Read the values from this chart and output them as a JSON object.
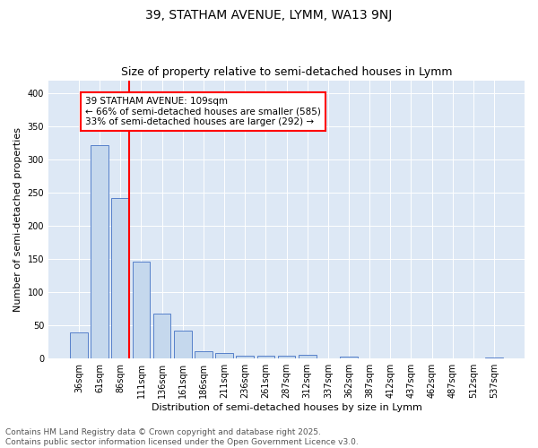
{
  "title1": "39, STATHAM AVENUE, LYMM, WA13 9NJ",
  "title2": "Size of property relative to semi-detached houses in Lymm",
  "xlabel": "Distribution of semi-detached houses by size in Lymm",
  "ylabel": "Number of semi-detached properties",
  "categories": [
    "36sqm",
    "61sqm",
    "86sqm",
    "111sqm",
    "136sqm",
    "161sqm",
    "186sqm",
    "211sqm",
    "236sqm",
    "261sqm",
    "287sqm",
    "312sqm",
    "337sqm",
    "362sqm",
    "387sqm",
    "412sqm",
    "437sqm",
    "462sqm",
    "487sqm",
    "512sqm",
    "537sqm"
  ],
  "values": [
    40,
    322,
    242,
    146,
    68,
    42,
    11,
    8,
    4,
    5,
    5,
    6,
    0,
    3,
    0,
    0,
    0,
    0,
    0,
    0,
    2
  ],
  "bar_color": "#c5d8ed",
  "bar_edge_color": "#4472c4",
  "vline_color": "red",
  "vline_x_index": 2,
  "annotation_text_line1": "39 STATHAM AVENUE: 109sqm",
  "annotation_text_line2": "← 66% of semi-detached houses are smaller (585)",
  "annotation_text_line3": "33% of semi-detached houses are larger (292) →",
  "ylim": [
    0,
    420
  ],
  "yticks": [
    0,
    50,
    100,
    150,
    200,
    250,
    300,
    350,
    400
  ],
  "bg_color": "#dde8f5",
  "footer_text": "Contains HM Land Registry data © Crown copyright and database right 2025.\nContains public sector information licensed under the Open Government Licence v3.0.",
  "title1_fontsize": 10,
  "title2_fontsize": 9,
  "axis_label_fontsize": 8,
  "tick_fontsize": 7,
  "annotation_fontsize": 7.5,
  "footer_fontsize": 6.5
}
